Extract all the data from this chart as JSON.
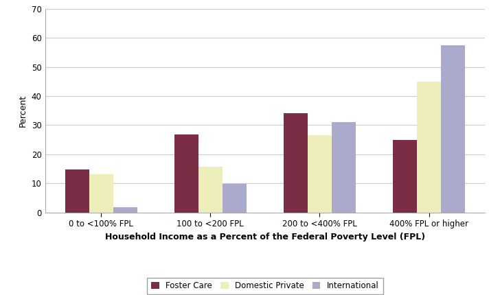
{
  "categories": [
    "0 to <100% FPL",
    "100 to <200 FPL",
    "200 to <400% FPL",
    "400% FPL or higher"
  ],
  "series": {
    "Foster Care": [
      14.8,
      26.8,
      34.2,
      25.0
    ],
    "Domestic Private": [
      13.0,
      15.8,
      26.5,
      45.0
    ],
    "International": [
      1.8,
      9.9,
      31.0,
      57.5
    ]
  },
  "bar_colors": {
    "Foster Care": "#7B2D45",
    "Domestic Private": "#EEEEBB",
    "International": "#AAAACC"
  },
  "ylabel": "Percent",
  "xlabel": "Household Income as a Percent of the Federal Poverty Level (FPL)",
  "ylim": [
    0,
    70
  ],
  "yticks": [
    0,
    10,
    20,
    30,
    40,
    50,
    60,
    70
  ],
  "background_color": "#FFFFFF",
  "plot_bg_color": "#FFFFFF",
  "grid_color": "#CCCCCC",
  "bar_width": 0.22,
  "axis_label_fontsize": 9,
  "tick_fontsize": 8.5,
  "legend_fontsize": 8.5,
  "xlabel_fontsize": 9,
  "ylabel_fontsize": 9
}
